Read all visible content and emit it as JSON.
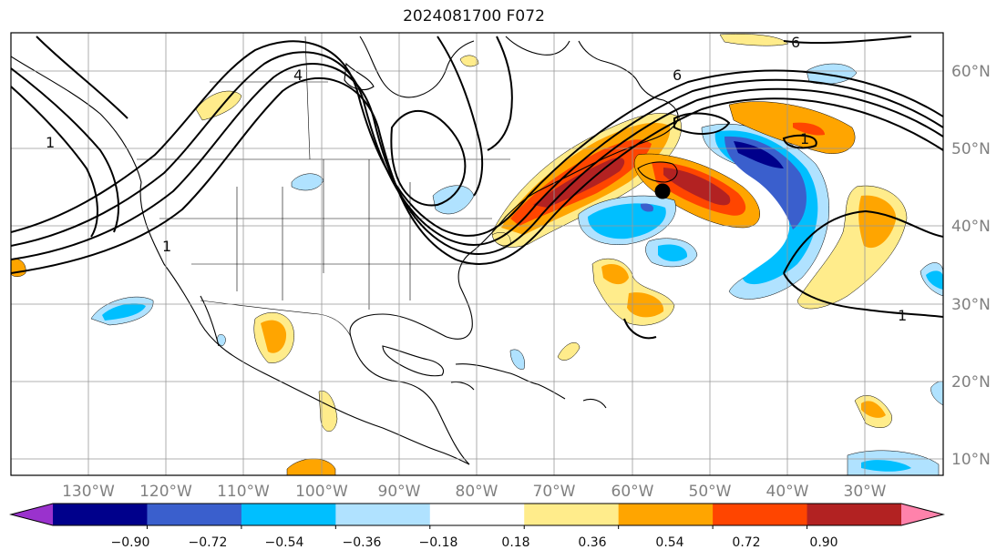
{
  "title": "2024081700 F072",
  "longitude_labels": [
    "130°W",
    "120°W",
    "110°W",
    "100°W",
    "90°W",
    "80°W",
    "70°W",
    "60°W",
    "50°W",
    "40°W",
    "30°W"
  ],
  "latitude_labels": [
    "60°N",
    "50°N",
    "40°N",
    "30°N",
    "20°N",
    "10°N"
  ],
  "contour_labels": [
    "1",
    "4",
    "6",
    "1",
    "1",
    "6",
    "1"
  ],
  "colorbar": {
    "tick_labels": [
      "−0.90",
      "−0.72",
      "−0.54",
      "−0.36",
      "−0.18",
      "0.18",
      "0.36",
      "0.54",
      "0.72",
      "0.90"
    ],
    "colors": [
      "#9a32cd",
      "#00008b",
      "#3a5fcd",
      "#00bfff",
      "#b0e2ff",
      "#ffffff",
      "#ffec8b",
      "#ffa500",
      "#ff4500",
      "#b22222",
      "#ff82ab"
    ]
  },
  "marker": {
    "lon": -56,
    "lat": 44.5
  }
}
